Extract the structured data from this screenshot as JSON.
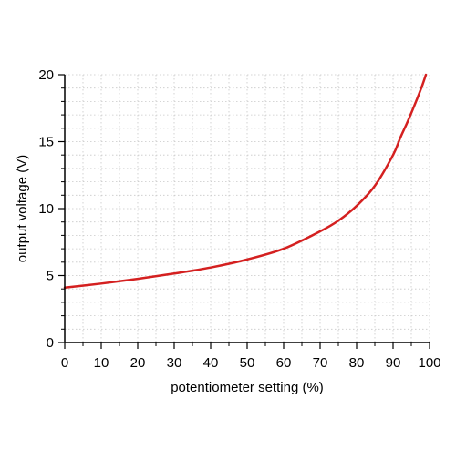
{
  "chart_data": {
    "type": "line",
    "title": "",
    "xlabel": "potentiometer setting (%)",
    "ylabel": "output voltage (V)",
    "xlim": [
      0,
      100
    ],
    "ylim": [
      0,
      20
    ],
    "x_ticks": [
      0,
      10,
      20,
      30,
      40,
      50,
      60,
      70,
      80,
      90,
      100
    ],
    "y_ticks": [
      0,
      5,
      10,
      15,
      20
    ],
    "grid": true,
    "grid_style": "dotted",
    "legend": "none",
    "series": [
      {
        "color": "#d42020",
        "x": [
          0,
          10,
          20,
          30,
          40,
          50,
          60,
          70,
          75,
          80,
          85,
          90,
          92,
          94,
          96,
          98,
          99
        ],
        "y": [
          4.1,
          4.4,
          4.75,
          5.15,
          5.6,
          6.2,
          7.0,
          8.3,
          9.1,
          10.2,
          11.7,
          14.0,
          15.3,
          16.5,
          17.8,
          19.2,
          20.0
        ]
      }
    ]
  }
}
